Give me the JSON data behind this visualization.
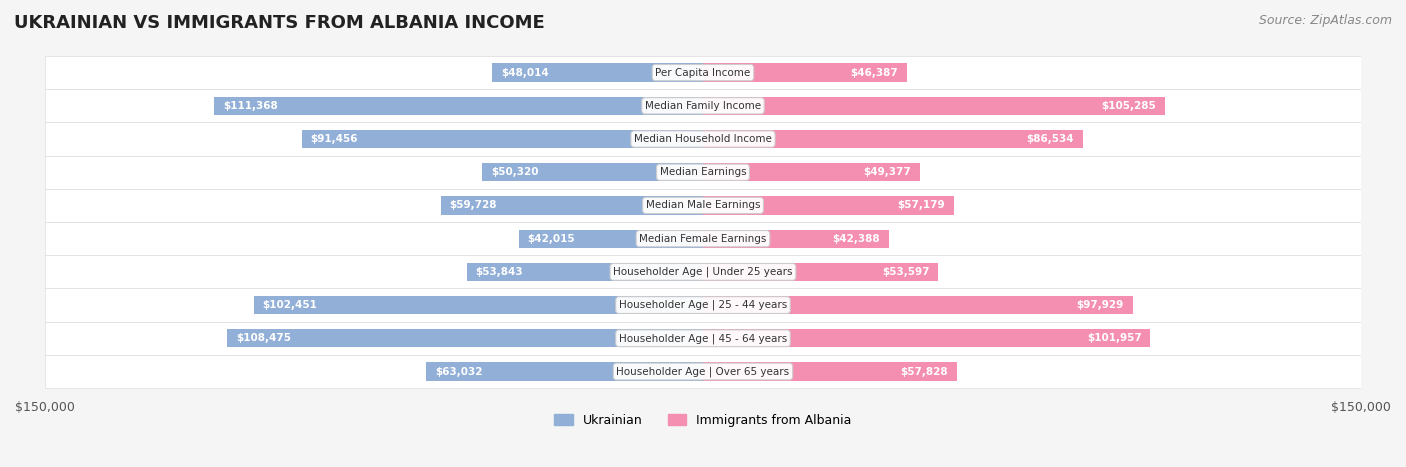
{
  "title": "UKRAINIAN VS IMMIGRANTS FROM ALBANIA INCOME",
  "source": "Source: ZipAtlas.com",
  "categories": [
    "Per Capita Income",
    "Median Family Income",
    "Median Household Income",
    "Median Earnings",
    "Median Male Earnings",
    "Median Female Earnings",
    "Householder Age | Under 25 years",
    "Householder Age | 25 - 44 years",
    "Householder Age | 45 - 64 years",
    "Householder Age | Over 65 years"
  ],
  "ukrainian_values": [
    48014,
    111368,
    91456,
    50320,
    59728,
    42015,
    53843,
    102451,
    108475,
    63032
  ],
  "albanian_values": [
    46387,
    105285,
    86534,
    49377,
    57179,
    42388,
    53597,
    97929,
    101957,
    57828
  ],
  "ukrainian_labels": [
    "$48,014",
    "$111,368",
    "$91,456",
    "$50,320",
    "$59,728",
    "$42,015",
    "$53,843",
    "$102,451",
    "$108,475",
    "$63,032"
  ],
  "albanian_labels": [
    "$46,387",
    "$105,285",
    "$86,534",
    "$49,377",
    "$57,179",
    "$42,388",
    "$53,597",
    "$97,929",
    "$101,957",
    "$57,828"
  ],
  "ukrainian_color": "#92afd7",
  "albanian_color": "#f48fb1",
  "ukrainian_label_color_inside": "#ffffff",
  "albanian_label_color_inside": "#ffffff",
  "label_color_outside": "#555555",
  "max_value": 150000,
  "background_color": "#f5f5f5",
  "row_background_color": "#ffffff",
  "title_fontsize": 13,
  "source_fontsize": 9,
  "bar_height": 0.55,
  "legend_ukrainian": "Ukrainian",
  "legend_albanian": "Immigrants from Albania",
  "axis_label_left": "$150,000",
  "axis_label_right": "$150,000"
}
